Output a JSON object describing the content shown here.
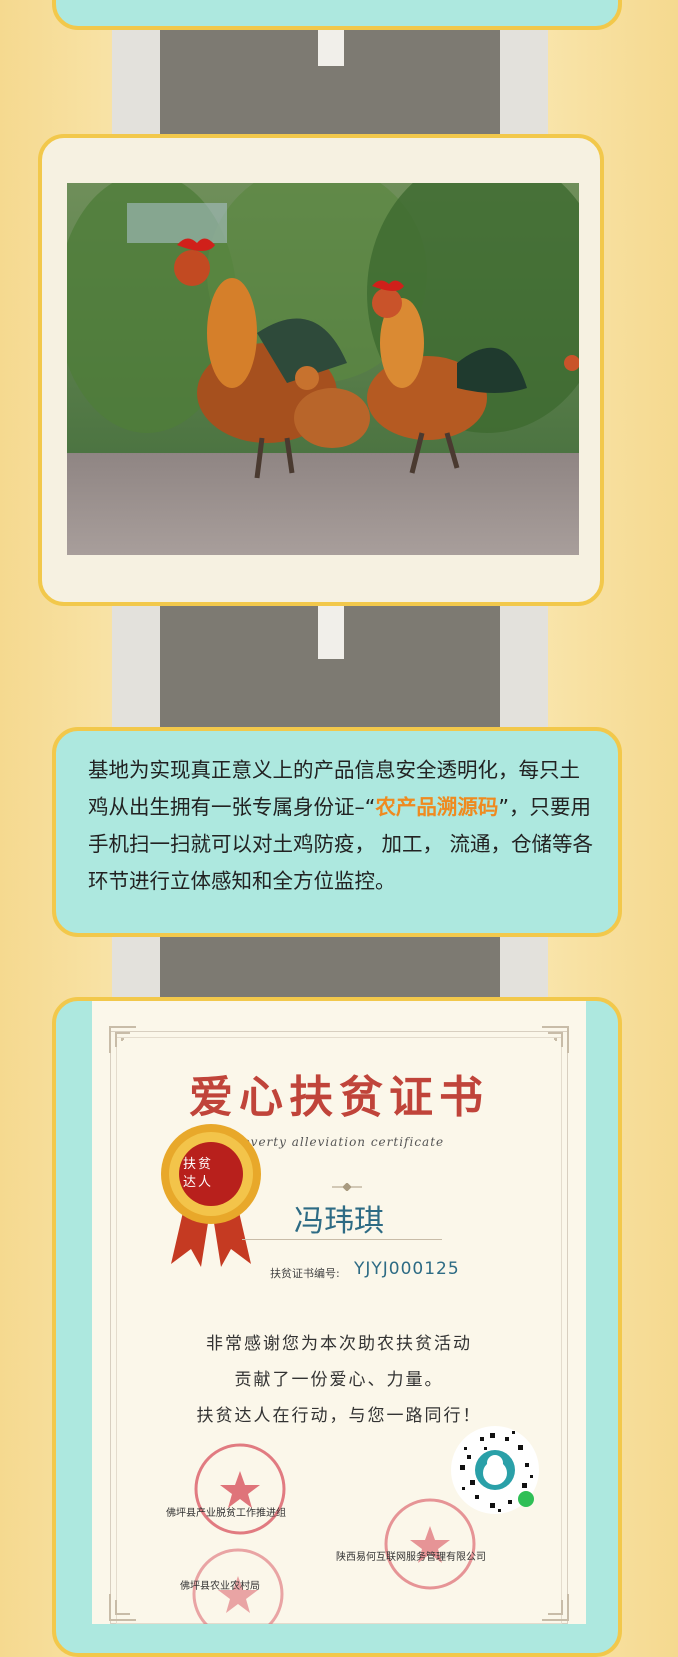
{
  "intro": {
    "paragraph_before": "基地为实现真正意义上的产品信息安全透明化，每只土鸡从出生拥有一张专属身份证–“",
    "highlight": "农产品溯源码",
    "paragraph_after": "”，只要用手机扫一扫就可以对土鸡防疫， 加工， 流通，仓储等各环节进行立体感知和全方位监控。"
  },
  "certificate": {
    "title": "爱心扶贫证书",
    "subtitle": "Poverty alleviation certificate",
    "recipient": "冯玮琪",
    "number_label": "扶贫证书编号:",
    "number_value": "YJYJ000125",
    "medal_text_line1": "扶贫",
    "medal_text_line2": "达人",
    "lines": [
      "非常感谢您为本次助农扶贫活动",
      "贡献了一份爱心、力量。",
      "扶贫达人在行动，与您一路同行！"
    ],
    "org1": "佛坪县产业脱贫工作推进组",
    "org2": "陕西易何互联网服务管理有限公司",
    "org3": "佛坪县农业农村局"
  },
  "colors": {
    "teal_panel": "#ade8df",
    "gold_border": "#f2c84b",
    "highlight": "#ef8a1f",
    "title_red": "#c0443a"
  }
}
